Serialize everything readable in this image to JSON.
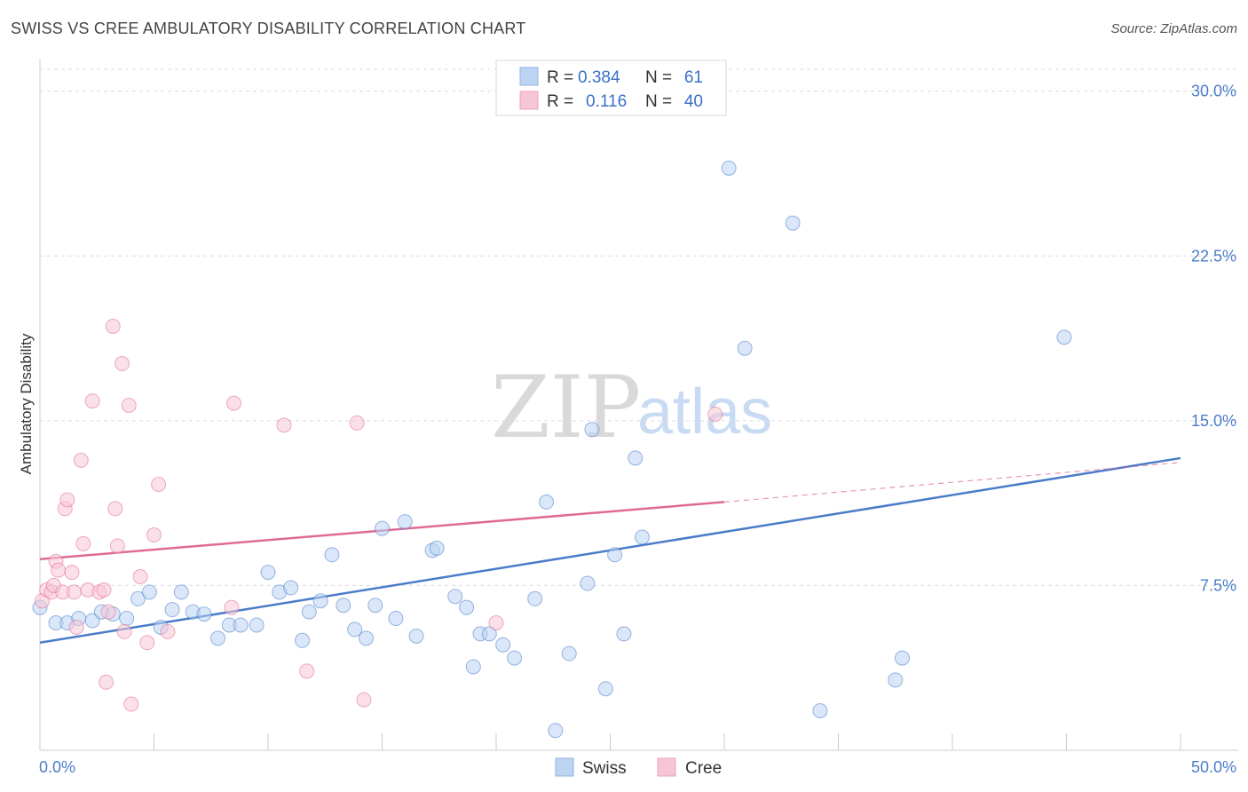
{
  "title": "SWISS VS CREE AMBULATORY DISABILITY CORRELATION CHART",
  "source": "Source: ZipAtlas.com",
  "watermark": {
    "zip": "ZIP",
    "atlas": "atlas"
  },
  "legend": {
    "rows": [
      {
        "r_label": "R =",
        "r_value": "0.384",
        "n_label": "N =",
        "n_value": "61",
        "color": "#a8c8f0"
      },
      {
        "r_label": "R =",
        "r_value": "0.116",
        "n_label": "N =",
        "n_value": "40",
        "color": "#f5b8cc"
      }
    ]
  },
  "chart_data": {
    "type": "scatter",
    "title": "SWISS VS CREE AMBULATORY DISABILITY CORRELATION CHART",
    "xlabel": "",
    "ylabel": "Ambulatory Disability",
    "xlim": [
      0,
      50
    ],
    "ylim": [
      0,
      31
    ],
    "x_tick_labels": [
      "0.0%",
      "50.0%"
    ],
    "y_ticks": [
      7.5,
      15.0,
      22.5,
      30.0
    ],
    "y_tick_labels": [
      "7.5%",
      "15.0%",
      "22.5%",
      "30.0%"
    ],
    "grid": true,
    "legend_position": "top-center",
    "series": [
      {
        "name": "Swiss",
        "color": "#4a7cc9",
        "fill": "#bcd4f2",
        "trend": {
          "x": [
            0,
            50
          ],
          "y": [
            4.9,
            13.3
          ],
          "style": "solid"
        },
        "points": [
          [
            0.0,
            6.5
          ],
          [
            0.7,
            5.8
          ],
          [
            1.2,
            5.8
          ],
          [
            1.7,
            6.0
          ],
          [
            2.3,
            5.9
          ],
          [
            2.7,
            6.3
          ],
          [
            3.2,
            6.2
          ],
          [
            3.8,
            6.0
          ],
          [
            4.3,
            6.9
          ],
          [
            4.8,
            7.2
          ],
          [
            5.3,
            5.6
          ],
          [
            5.8,
            6.4
          ],
          [
            6.2,
            7.2
          ],
          [
            6.7,
            6.3
          ],
          [
            7.2,
            6.2
          ],
          [
            7.8,
            5.1
          ],
          [
            8.3,
            5.7
          ],
          [
            8.8,
            5.7
          ],
          [
            9.5,
            5.7
          ],
          [
            10.0,
            8.1
          ],
          [
            10.5,
            7.2
          ],
          [
            11.0,
            7.4
          ],
          [
            11.5,
            5.0
          ],
          [
            11.8,
            6.3
          ],
          [
            12.3,
            6.8
          ],
          [
            12.8,
            8.9
          ],
          [
            13.3,
            6.6
          ],
          [
            13.8,
            5.5
          ],
          [
            14.3,
            5.1
          ],
          [
            14.7,
            6.6
          ],
          [
            15.0,
            10.1
          ],
          [
            15.6,
            6.0
          ],
          [
            16.0,
            10.4
          ],
          [
            16.5,
            5.2
          ],
          [
            17.2,
            9.1
          ],
          [
            17.4,
            9.2
          ],
          [
            18.2,
            7.0
          ],
          [
            18.7,
            6.5
          ],
          [
            19.0,
            3.8
          ],
          [
            19.3,
            5.3
          ],
          [
            19.7,
            5.3
          ],
          [
            20.3,
            4.8
          ],
          [
            20.8,
            4.2
          ],
          [
            21.7,
            6.9
          ],
          [
            22.2,
            11.3
          ],
          [
            22.6,
            0.9
          ],
          [
            23.2,
            4.4
          ],
          [
            24.0,
            7.6
          ],
          [
            24.2,
            14.6
          ],
          [
            24.8,
            2.8
          ],
          [
            25.2,
            8.9
          ],
          [
            25.6,
            5.3
          ],
          [
            26.1,
            13.3
          ],
          [
            26.4,
            9.7
          ],
          [
            30.2,
            26.5
          ],
          [
            30.9,
            18.3
          ],
          [
            33.0,
            24.0
          ],
          [
            34.2,
            1.8
          ],
          [
            37.5,
            3.2
          ],
          [
            37.8,
            4.2
          ],
          [
            44.9,
            18.8
          ]
        ]
      },
      {
        "name": "Cree",
        "color": "#e06a93",
        "fill": "#f7c6d6",
        "trend": {
          "x": [
            0,
            30
          ],
          "y": [
            8.7,
            11.3
          ],
          "dashed_to": [
            50,
            13.1
          ],
          "style": "solid-then-dashed"
        },
        "points": [
          [
            0.1,
            6.8
          ],
          [
            0.3,
            7.3
          ],
          [
            0.5,
            7.2
          ],
          [
            0.6,
            7.5
          ],
          [
            0.7,
            8.6
          ],
          [
            0.8,
            8.2
          ],
          [
            1.0,
            7.2
          ],
          [
            1.1,
            11.0
          ],
          [
            1.2,
            11.4
          ],
          [
            1.4,
            8.1
          ],
          [
            1.5,
            7.2
          ],
          [
            1.6,
            5.6
          ],
          [
            1.8,
            13.2
          ],
          [
            1.9,
            9.4
          ],
          [
            2.1,
            7.3
          ],
          [
            2.3,
            15.9
          ],
          [
            2.6,
            7.2
          ],
          [
            2.8,
            7.3
          ],
          [
            2.9,
            3.1
          ],
          [
            3.0,
            6.3
          ],
          [
            3.2,
            19.3
          ],
          [
            3.3,
            11.0
          ],
          [
            3.4,
            9.3
          ],
          [
            3.6,
            17.6
          ],
          [
            3.7,
            5.4
          ],
          [
            3.9,
            15.7
          ],
          [
            4.0,
            2.1
          ],
          [
            4.4,
            7.9
          ],
          [
            4.7,
            4.9
          ],
          [
            5.0,
            9.8
          ],
          [
            5.2,
            12.1
          ],
          [
            5.6,
            5.4
          ],
          [
            8.4,
            6.5
          ],
          [
            8.5,
            15.8
          ],
          [
            10.7,
            14.8
          ],
          [
            11.7,
            3.6
          ],
          [
            13.9,
            14.9
          ],
          [
            14.2,
            2.3
          ],
          [
            20.0,
            5.8
          ],
          [
            29.6,
            15.3
          ]
        ]
      }
    ]
  },
  "bottom_legend": [
    {
      "label": "Swiss",
      "color": "#a8c8f0"
    },
    {
      "label": "Cree",
      "color": "#f5b8cc"
    }
  ]
}
